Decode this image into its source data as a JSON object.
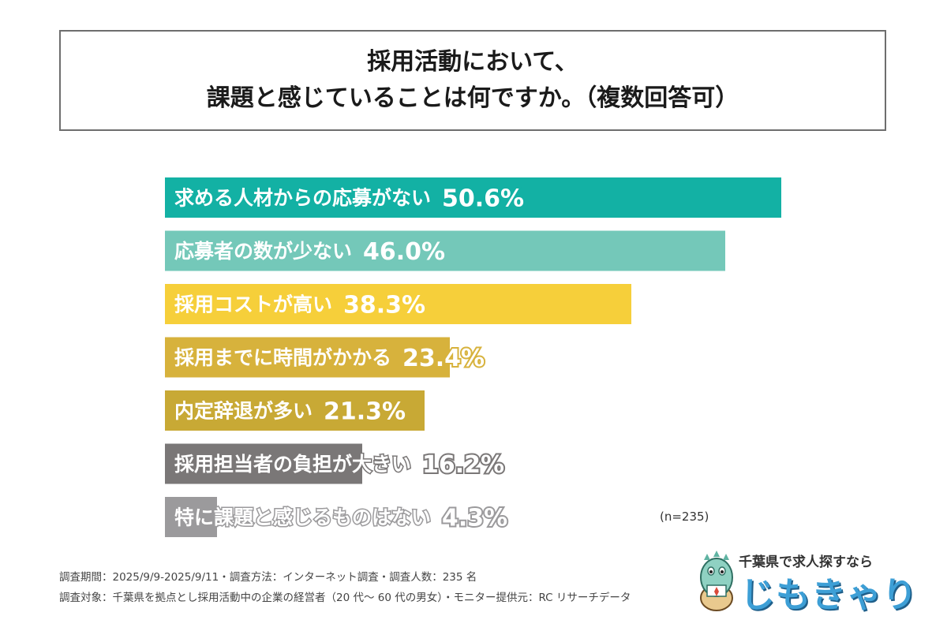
{
  "title": {
    "line1": "採用活動において、",
    "line2": "課題と感じていることは何ですか。（複数回答可）"
  },
  "chart_data": {
    "type": "bar",
    "orientation": "horizontal",
    "categories": [
      "求める人材からの応募がない",
      "応募者の数が少ない",
      "採用コストが高い",
      "採用までに時間がかかる",
      "内定辞退が多い",
      "採用担当者の負担が大きい",
      "特に課題と感じるものはない"
    ],
    "values": [
      50.6,
      46.0,
      38.3,
      23.4,
      21.3,
      16.2,
      4.3
    ],
    "value_labels": [
      "50.6%",
      "46.0%",
      "38.3%",
      "23.4%",
      "21.3%",
      "16.2%",
      "4.3%"
    ],
    "colors": [
      "#13b1a4",
      "#74c8b9",
      "#f6cf3a",
      "#d7b23c",
      "#c8a935",
      "#7a7777",
      "#9b9a9c"
    ],
    "xlim": [
      0,
      50.6
    ],
    "title": "",
    "xlabel": "",
    "ylabel": ""
  },
  "sample_note": "(n=235)",
  "footer": {
    "line1": "調査期間：2025/9/9-2025/9/11・調査方法：インターネット調査・調査人数：235 名",
    "line2": "調査対象：千葉県を拠点とし採用活動中の企業の経営者（20 代～ 60 代の男女）・モニター提供元：RC リサーチデータ"
  },
  "logo": {
    "tagline": "千葉県で求人探すなら",
    "name": "じもきゃり",
    "mascot_icon": "dinosaur-mascot-icon"
  }
}
